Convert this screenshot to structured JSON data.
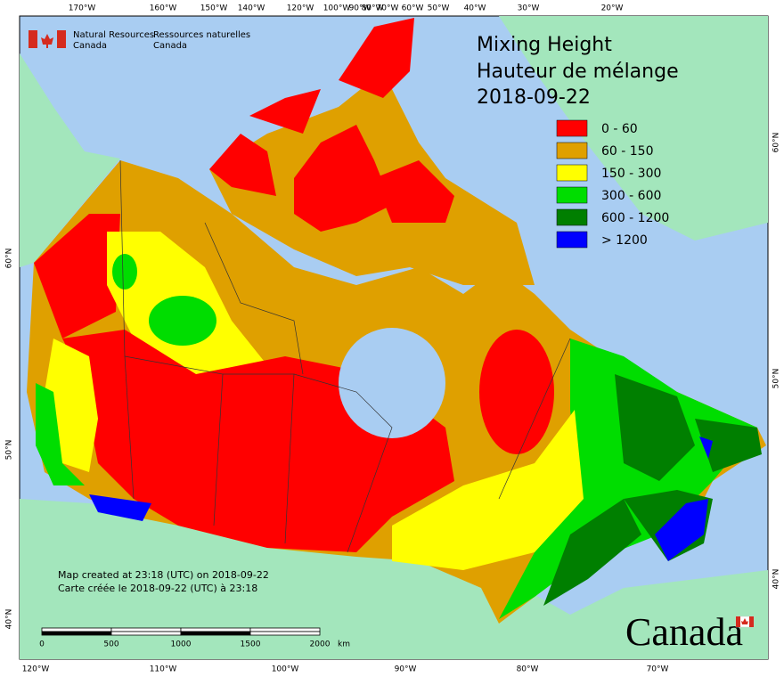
{
  "agency": {
    "en_line1": "Natural Resources",
    "en_line2": "Canada",
    "fr_line1": "Ressources naturelles",
    "fr_line2": "Canada"
  },
  "title": {
    "en": "Mixing Height",
    "fr": "Hauteur de mélange",
    "date": "2018-09-22"
  },
  "legend": [
    {
      "label": "0 - 60",
      "color": "#ff0000"
    },
    {
      "label": "60 - 150",
      "color": "#dfa000"
    },
    {
      "label": "150 - 300",
      "color": "#ffff00"
    },
    {
      "label": "300 - 600",
      "color": "#00dd00"
    },
    {
      "label": "600 - 1200",
      "color": "#007f00"
    },
    {
      "label": "> 1200",
      "color": "#0000ff"
    }
  ],
  "top_longitudes": [
    "170°W",
    "160°W",
    "150°W",
    "140°W",
    "120°W",
    "100°W",
    "90°W",
    "80°W",
    "70°W",
    "60°W",
    "50°W",
    "40°W",
    "30°W",
    "20°W"
  ],
  "bottom_longitudes": [
    "120°W",
    "110°W",
    "100°W",
    "90°W",
    "80°W",
    "70°W"
  ],
  "left_latitudes": [
    "60°N",
    "50°N",
    "40°N"
  ],
  "right_latitudes": [
    "60°N",
    "50°N",
    "40°N"
  ],
  "scale": {
    "labels": [
      "0",
      "500",
      "1000",
      "1500",
      "2000"
    ],
    "unit": "km"
  },
  "notes": {
    "en": "Map created at 23:18 (UTC) on 2018-09-22",
    "fr": "Carte créée le 2018-09-22 (UTC) à 23:18"
  },
  "wordmark": "Canada"
}
